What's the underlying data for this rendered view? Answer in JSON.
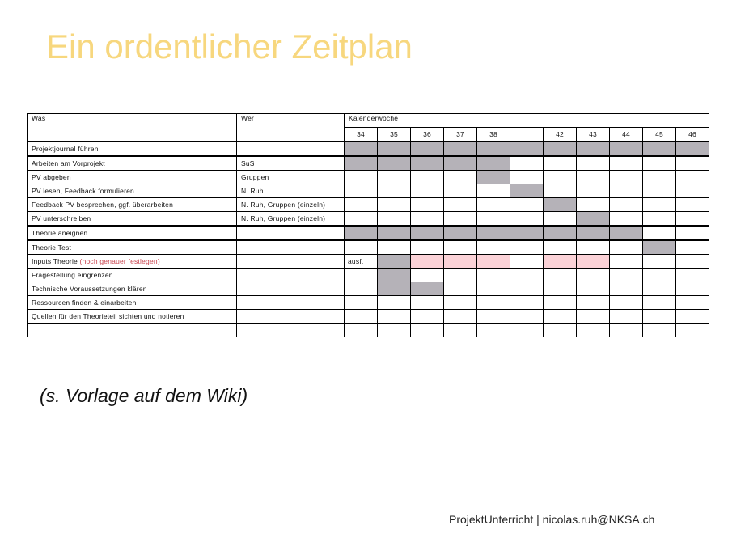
{
  "title": "Ein ordentlicher Zeitplan",
  "table": {
    "header_was": "Was",
    "header_wer": "Wer",
    "header_calendar": "Kalenderwoche",
    "weeks": [
      "34",
      "35",
      "36",
      "37",
      "38",
      "",
      "42",
      "43",
      "44",
      "45",
      "46"
    ],
    "rows": [
      {
        "was": "Projektjournal führen",
        "wer": "",
        "mark": "",
        "cells": [
          "g",
          "g",
          "g",
          "g",
          "g",
          "g",
          "g",
          "g",
          "g",
          "g",
          "g"
        ]
      },
      {
        "was": "Arbeiten am Vorprojekt",
        "wer": "SuS",
        "mark": "",
        "cells": [
          "g",
          "g",
          "g",
          "g",
          "g",
          "",
          "",
          "",
          "",
          "",
          ""
        ]
      },
      {
        "was": "PV abgeben",
        "wer": "Gruppen",
        "mark": "",
        "cells": [
          "",
          "",
          "",
          "",
          "g",
          "",
          "",
          "",
          "",
          "",
          ""
        ]
      },
      {
        "was": "PV lesen, Feedback formulieren",
        "wer": "N. Ruh",
        "mark": "",
        "cells": [
          "",
          "",
          "",
          "",
          "",
          "g",
          "",
          "",
          "",
          "",
          ""
        ]
      },
      {
        "was": "Feedback PV besprechen, ggf. überarbeiten",
        "wer": "N. Ruh, Gruppen (einzeln)",
        "mark": "",
        "cells": [
          "",
          "",
          "",
          "",
          "",
          "",
          "g",
          "",
          "",
          "",
          ""
        ]
      },
      {
        "was": "PV unterschreiben",
        "wer": "N. Ruh, Gruppen (einzeln)",
        "mark": "",
        "cells": [
          "",
          "",
          "",
          "",
          "",
          "",
          "",
          "g",
          "",
          "",
          ""
        ]
      },
      {
        "was": "Theorie aneignen",
        "wer": "",
        "mark": "",
        "cells": [
          "g",
          "g",
          "g",
          "g",
          "g",
          "g",
          "g",
          "g",
          "g",
          "",
          ""
        ]
      },
      {
        "was": "Theorie Test",
        "wer": "",
        "mark": "",
        "cells": [
          "",
          "",
          "",
          "",
          "",
          "",
          "",
          "",
          "",
          "g",
          ""
        ]
      },
      {
        "was": "Inputs Theorie",
        "was_note": "(noch genauer festlegen)",
        "wer": "",
        "mark": "ausf.",
        "cells": [
          "",
          "g",
          "p",
          "p",
          "p",
          "",
          "p",
          "p",
          "",
          "",
          ""
        ]
      },
      {
        "was": "Fragestellung eingrenzen",
        "wer": "",
        "mark": "",
        "cells": [
          "",
          "g",
          "",
          "",
          "",
          "",
          "",
          "",
          "",
          "",
          ""
        ]
      },
      {
        "was": "Technische Voraussetzungen klären",
        "wer": "",
        "mark": "",
        "cells": [
          "",
          "g",
          "g",
          "",
          "",
          "",
          "",
          "",
          "",
          "",
          ""
        ]
      },
      {
        "was": "Ressourcen finden & einarbeiten",
        "wer": "",
        "mark": "",
        "cells": [
          "",
          "",
          "",
          "",
          "",
          "",
          "",
          "",
          "",
          "",
          ""
        ]
      },
      {
        "was": "Quellen für den Theorieteil sichten und notieren",
        "wer": "",
        "mark": "",
        "cells": [
          "",
          "",
          "",
          "",
          "",
          "",
          "",
          "",
          "",
          "",
          ""
        ]
      },
      {
        "was": "...",
        "wer": "",
        "mark": "",
        "cells": [
          "",
          "",
          "",
          "",
          "",
          "",
          "",
          "",
          "",
          "",
          ""
        ]
      }
    ]
  },
  "note": "(s. Vorlage auf dem Wiki)",
  "footer": "ProjektUnterricht | nicolas.ruh@NKSA.ch",
  "colors": {
    "title": "#f7d77e",
    "filled": "#b5b2b8",
    "planned": "#fbd2d7",
    "note_text": "#c9444f"
  }
}
